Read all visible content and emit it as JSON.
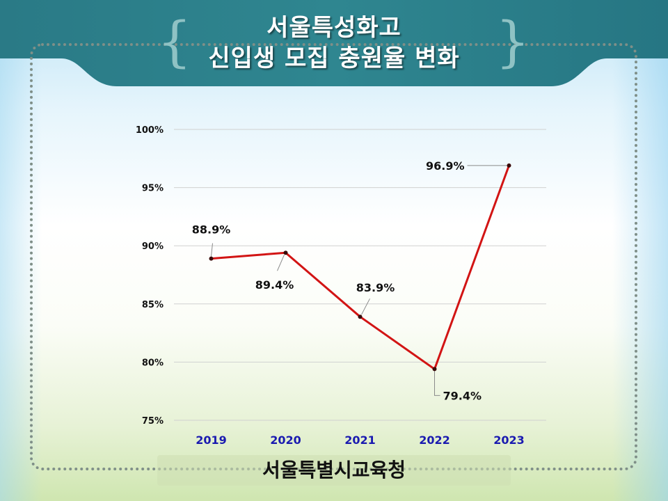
{
  "slide": {
    "title_line1": "서울특성화고",
    "title_line2": "신입생 모집 충원율 변화",
    "footer": "서울특별시교육청",
    "brace_left": "{",
    "brace_right": "}",
    "colors": {
      "banner": "#2a7f8c",
      "line": "#d21414",
      "marker": "#3a0a0a",
      "x_label": "#1a1ab0",
      "grid": "#d0d0d0"
    }
  },
  "chart_data": {
    "type": "line",
    "title": "서울특성화고 신입생 모집 충원율 변화",
    "categories": [
      "2019",
      "2020",
      "2021",
      "2022",
      "2023"
    ],
    "series": [
      {
        "name": "충원율",
        "values": [
          88.9,
          89.4,
          83.9,
          79.4,
          96.9
        ]
      }
    ],
    "data_labels": [
      "88.9%",
      "89.4%",
      "83.9%",
      "79.4%",
      "96.9%"
    ],
    "xlabel": "",
    "ylabel": "",
    "ylim": [
      75,
      100
    ],
    "yticks": [
      "100%",
      "95%",
      "90%",
      "85%",
      "80%",
      "75%"
    ],
    "grid": true,
    "legend": "none",
    "source": "서울특별시교육청"
  }
}
